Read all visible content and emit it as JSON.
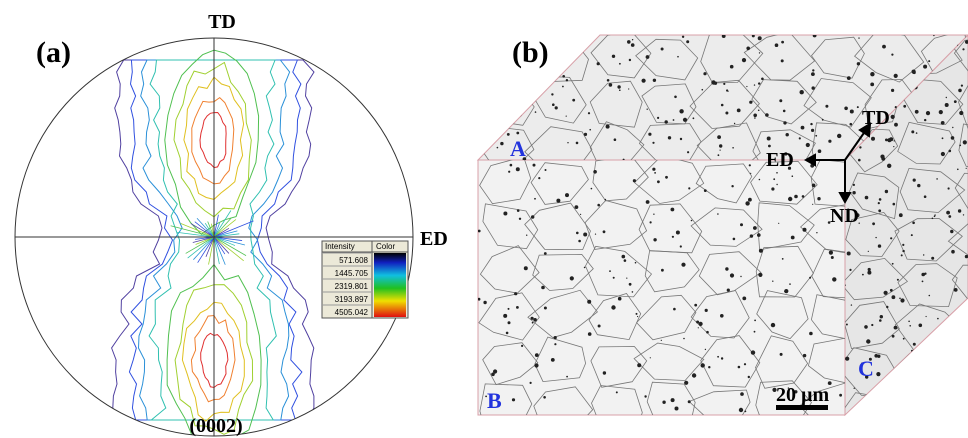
{
  "panel_a": {
    "label": "(a)",
    "axis_top": "TD",
    "axis_right": "ED",
    "plane": "(0002)",
    "legend": {
      "headers": [
        "Intensity",
        "Color"
      ],
      "rows": [
        "571.608",
        "1445.705",
        "2319.801",
        "3193.897",
        "4505.042"
      ]
    }
  },
  "panel_b": {
    "label": "(b)",
    "faces": [
      "A",
      "B",
      "C"
    ],
    "directions": [
      "TD",
      "ED",
      "ND"
    ],
    "scale_bar": "20 µm"
  }
}
